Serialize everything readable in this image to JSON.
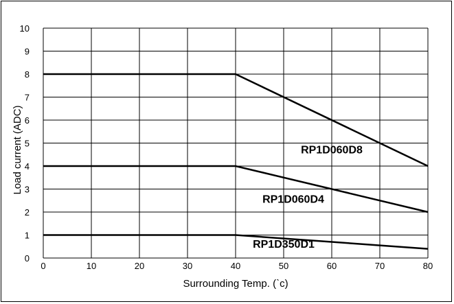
{
  "chart_data": {
    "type": "line",
    "xlabel": "Surrounding Temp. (ˋc)",
    "ylabel": "Load current (ADC)",
    "xlim": [
      0,
      80
    ],
    "ylim": [
      0,
      10
    ],
    "x_ticks": [
      "0",
      "10",
      "20",
      "30",
      "40",
      "50",
      "60",
      "70",
      "80"
    ],
    "y_ticks": [
      "0",
      "1",
      "2",
      "3",
      "4",
      "5",
      "6",
      "7",
      "8",
      "9",
      "10"
    ],
    "grid": true,
    "series": [
      {
        "name": "RP1D060D8",
        "x": [
          0,
          40,
          80
        ],
        "y": [
          8,
          8,
          4
        ],
        "label_at": [
          60,
          4.55
        ]
      },
      {
        "name": "RP1D060D4",
        "x": [
          0,
          40,
          80
        ],
        "y": [
          4,
          4,
          2
        ],
        "label_at": [
          52,
          2.4
        ]
      },
      {
        "name": "RP1D350D1",
        "x": [
          0,
          40,
          80
        ],
        "y": [
          1,
          1,
          0.4
        ],
        "label_at": [
          50,
          0.45
        ]
      }
    ],
    "colors": {
      "line": "#000000",
      "grid": "#000000"
    }
  }
}
